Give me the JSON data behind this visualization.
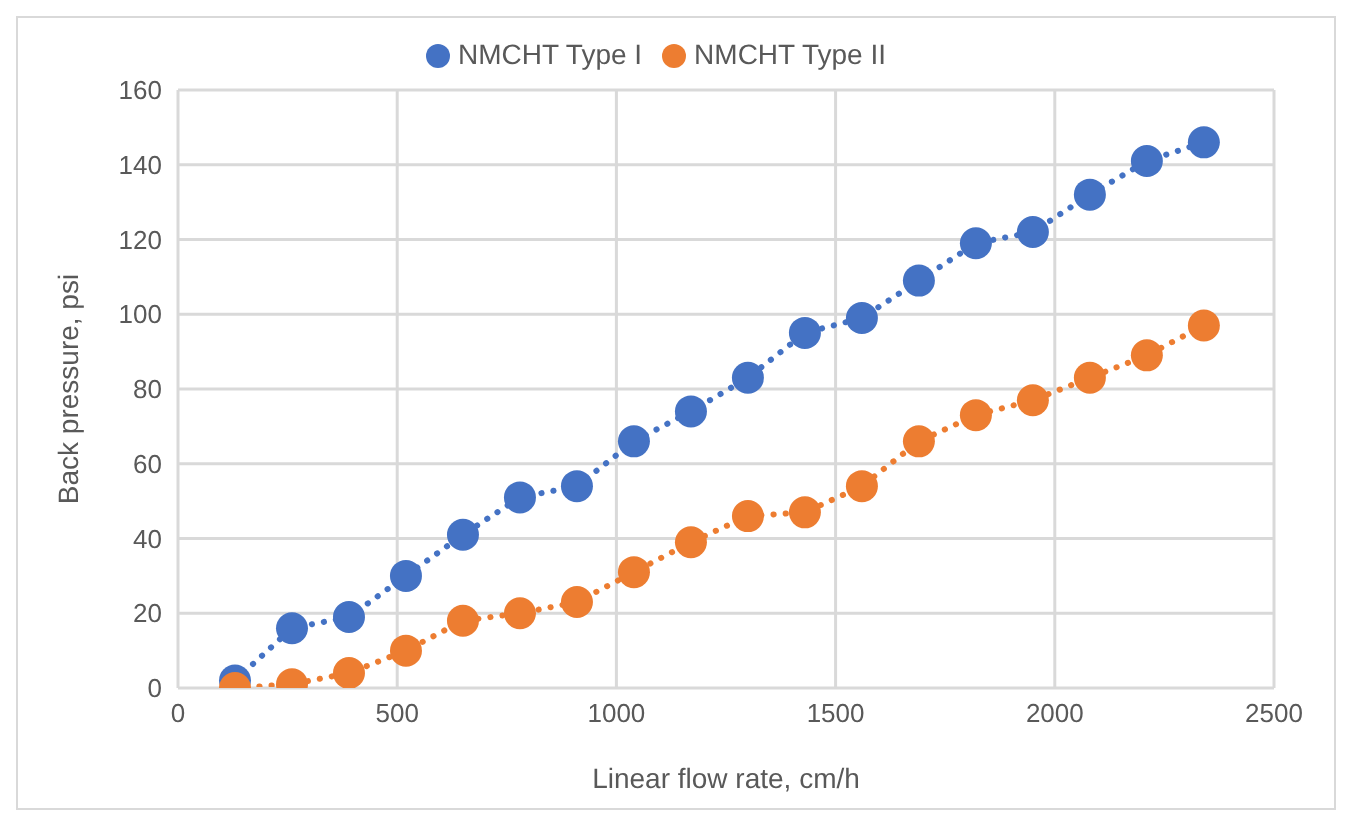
{
  "chart_data": {
    "type": "line",
    "xlabel": "Linear flow rate, cm/h",
    "ylabel": "Back pressure, psi",
    "x": [
      130,
      260,
      390,
      520,
      650,
      780,
      910,
      1040,
      1170,
      1300,
      1430,
      1560,
      1690,
      1820,
      1950,
      2080,
      2210,
      2340
    ],
    "series": [
      {
        "name": "NMCHT Type I",
        "color": "#4472c4",
        "values": [
          2,
          16,
          19,
          30,
          41,
          51,
          54,
          66,
          74,
          83,
          95,
          99,
          109,
          119,
          122,
          132,
          141,
          146
        ]
      },
      {
        "name": "NMCHT Type II",
        "color": "#ed7d31",
        "values": [
          0,
          1,
          4,
          10,
          18,
          20,
          23,
          31,
          39,
          46,
          47,
          54,
          66,
          73,
          77,
          83,
          89,
          97
        ]
      }
    ],
    "xlim": [
      0,
      2500
    ],
    "xticks": [
      0,
      500,
      1000,
      1500,
      2000,
      2500
    ],
    "ylim": [
      0,
      160
    ],
    "yticks": [
      0,
      20,
      40,
      60,
      80,
      100,
      120,
      140,
      160
    ],
    "grid": true,
    "legend": "top",
    "marker": "circle",
    "line_style": "dotted"
  }
}
